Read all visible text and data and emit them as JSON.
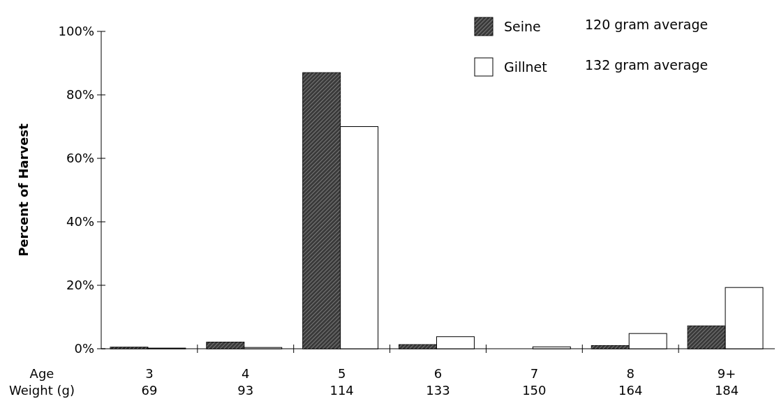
{
  "chart_data": {
    "type": "bar",
    "ylabel": "Percent of Harvest",
    "xlabel": "Age\nWeight (g)",
    "categories": [
      "3\n69",
      "4\n93",
      "5\n114",
      "6\n133",
      "7\n150",
      "8\n164",
      "9+\n184"
    ],
    "series": [
      {
        "name": "Seine",
        "color": "#3a3a3a",
        "values": [
          0.5,
          2.1,
          87,
          1.3,
          0,
          1,
          7.2
        ]
      },
      {
        "name": "Gillnet",
        "color": "#ffffff",
        "values": [
          0.2,
          0.4,
          70,
          3.8,
          0.6,
          4.8,
          19.3
        ]
      }
    ],
    "ylim": [
      0,
      100
    ],
    "yticks": [
      {
        "value": 0,
        "label": "0%"
      },
      {
        "value": 20,
        "label": "20%"
      },
      {
        "value": 40,
        "label": "40%"
      },
      {
        "value": 60,
        "label": "60%"
      },
      {
        "value": 80,
        "label": "80%"
      },
      {
        "value": 100,
        "label": "100%"
      }
    ],
    "legend": "top right",
    "grid": false,
    "annotations": [
      "120 gram average",
      "132 gram average"
    ]
  }
}
